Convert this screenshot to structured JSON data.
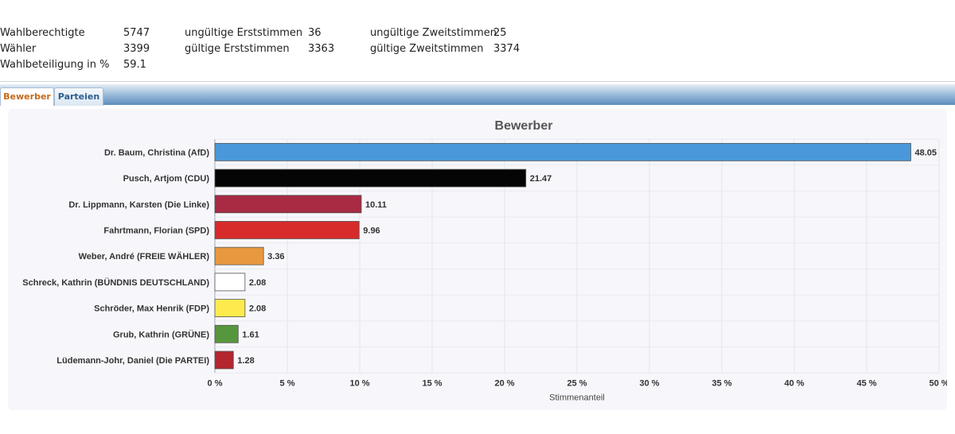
{
  "stats": {
    "wahlberechtigte_label": "Wahlberechtigte",
    "wahlberechtigte_value": "5747",
    "waehler_label": "Wähler",
    "waehler_value": "3399",
    "beteiligung_label": "Wahlbeteiligung in %",
    "beteiligung_value": "59.1",
    "ungueltige_erst_label": "ungültige Erststimmen",
    "ungueltige_erst_value": "36",
    "gueltige_erst_label": "gültige Erststimmen",
    "gueltige_erst_value": "3363",
    "ungueltige_zweit_label": "ungültige Zweitstimmen",
    "ungueltige_zweit_value": "25",
    "gueltige_zweit_label": "gültige Zweitstimmen",
    "gueltige_zweit_value": "3374"
  },
  "tabs": [
    {
      "label": "Bewerber",
      "active": true
    },
    {
      "label": "Parteien",
      "active": false
    }
  ],
  "chart_data": {
    "type": "bar",
    "orientation": "horizontal",
    "title": "Bewerber",
    "xlabel": "Stimmenanteil",
    "ylabel": "",
    "xlim": [
      0,
      50
    ],
    "xticks": [
      "0 %",
      "5 %",
      "10 %",
      "15 %",
      "20 %",
      "25 %",
      "30 %",
      "35 %",
      "40 %",
      "45 %",
      "50 %"
    ],
    "grid": true,
    "categories": [
      "Dr. Baum, Christina (AfD)",
      "Pusch, Artjom (CDU)",
      "Dr. Lippmann, Karsten (Die Linke)",
      "Fahrtmann, Florian (SPD)",
      "Weber, André (FREIE WÄHLER)",
      "Schreck, Kathrin (BÜNDNIS DEUTSCHLAND)",
      "Schröder, Max Henrik (FDP)",
      "Grub, Kathrin (GRÜNE)",
      "Lüdemann-Johr, Daniel (Die PARTEI)"
    ],
    "values": [
      48.05,
      21.47,
      10.11,
      9.96,
      3.36,
      2.08,
      2.08,
      1.61,
      1.28
    ],
    "value_labels": [
      "48.05",
      "21.47",
      "10.11",
      "9.96",
      "3.36",
      "2.08",
      "2.08",
      "1.61",
      "1.28"
    ],
    "colors": [
      "#4a98d9",
      "#050505",
      "#a82a43",
      "#d72b2b",
      "#e8983e",
      "#ffffff",
      "#fdeb4d",
      "#56963c",
      "#b3262e"
    ]
  }
}
